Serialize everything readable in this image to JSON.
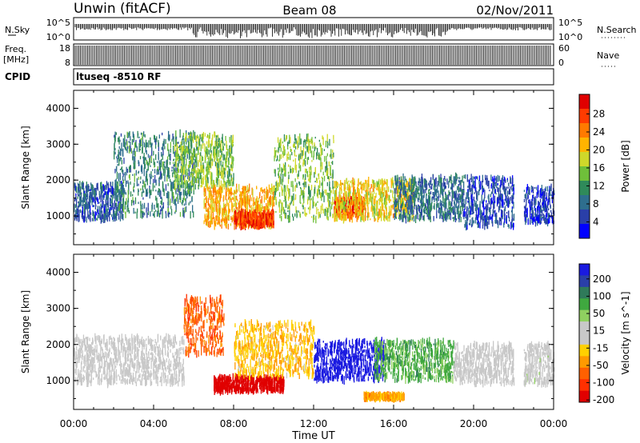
{
  "header": {
    "station": "Unwin (fitACF)",
    "beam": "Beam 08",
    "date": "02/Nov/2011"
  },
  "strip_labels": {
    "nsky": "N.Sky",
    "freq_line1": "Freq.",
    "freq_line2": "[MHz]",
    "cpid": "CPID",
    "nsearch": "N.Search",
    "nave": "Nave",
    "cpid_value": "ltuseq -8510 RF"
  },
  "strip_ticks": {
    "nsky_left": [
      "10^5",
      "10^0"
    ],
    "nsky_right": [
      "10^5",
      "10^0"
    ],
    "freq_left": [
      "18",
      "8"
    ],
    "nave_right": [
      "60",
      "0"
    ]
  },
  "chart_data": [
    {
      "type": "heatmap",
      "panel": "power",
      "ylabel": "Slant Range [km]",
      "xlabel": "Time UT",
      "xlim": [
        0,
        24
      ],
      "ylim": [
        200,
        4500
      ],
      "yticks": [
        "1000",
        "2000",
        "3000",
        "4000"
      ],
      "xticks": [
        "00:00",
        "04:00",
        "08:00",
        "12:00",
        "16:00",
        "20:00",
        "00:00"
      ],
      "colorbar": {
        "label": "Power [dB]",
        "ticks": [
          "4",
          "8",
          "12",
          "16",
          "20",
          "24",
          "28"
        ],
        "colors": [
          "#0000ff",
          "#2a3fa8",
          "#2e6e8e",
          "#2f8a5a",
          "#6fbf3a",
          "#cfd82a",
          "#ffb400",
          "#ff7a00",
          "#ff3b00",
          "#e00000"
        ]
      },
      "regions": [
        {
          "t0": 0.0,
          "t1": 2.5,
          "r0": 900,
          "r1": 1900,
          "value": 6
        },
        {
          "t0": 2.0,
          "t1": 6.0,
          "r0": 1000,
          "r1": 3300,
          "value": 9
        },
        {
          "t0": 5.0,
          "t1": 8.0,
          "r0": 1800,
          "r1": 3300,
          "value": 14
        },
        {
          "t0": 6.5,
          "t1": 10.0,
          "r0": 700,
          "r1": 1800,
          "value": 20
        },
        {
          "t0": 8.0,
          "t1": 10.0,
          "r0": 700,
          "r1": 1100,
          "value": 26
        },
        {
          "t0": 10.0,
          "t1": 13.0,
          "r0": 900,
          "r1": 3200,
          "value": 14
        },
        {
          "t0": 13.0,
          "t1": 14.5,
          "r0": 1000,
          "r1": 1500,
          "value": 27
        },
        {
          "t0": 13.0,
          "t1": 17.0,
          "r0": 900,
          "r1": 2000,
          "value": 18
        },
        {
          "t0": 16.0,
          "t1": 19.5,
          "r0": 900,
          "r1": 2100,
          "value": 8
        },
        {
          "t0": 19.5,
          "t1": 22.0,
          "r0": 700,
          "r1": 2100,
          "value": 5
        },
        {
          "t0": 22.5,
          "t1": 24.0,
          "r0": 800,
          "r1": 1800,
          "value": 4
        }
      ]
    },
    {
      "type": "heatmap",
      "panel": "velocity",
      "ylabel": "Slant Range [km]",
      "xlabel": "Time UT",
      "xlim": [
        0,
        24
      ],
      "ylim": [
        200,
        4500
      ],
      "yticks": [
        "1000",
        "2000",
        "3000",
        "4000"
      ],
      "xticks": [
        "00:00",
        "04:00",
        "08:00",
        "12:00",
        "16:00",
        "20:00",
        "00:00"
      ],
      "colorbar": {
        "label": "Velocity [m s^-1]",
        "ticks": [
          "200",
          "100",
          "50",
          "15",
          "-15",
          "-50",
          "-100",
          "-200"
        ],
        "colors": [
          "#1a1ae0",
          "#2a3fa8",
          "#2f7a5a",
          "#3fa83f",
          "#8fd060",
          "#c8c8c8",
          "#c8c8c8",
          "#ffd000",
          "#ff9a00",
          "#ff6000",
          "#ff3000",
          "#e00000"
        ]
      },
      "regions": [
        {
          "t0": 0.0,
          "t1": 5.5,
          "r0": 900,
          "r1": 2200,
          "value": 0
        },
        {
          "t0": 5.5,
          "t1": 7.5,
          "r0": 1700,
          "r1": 3300,
          "value": -120
        },
        {
          "t0": 7.0,
          "t1": 10.5,
          "r0": 700,
          "r1": 1100,
          "value": -200
        },
        {
          "t0": 8.0,
          "t1": 12.0,
          "r0": 1100,
          "r1": 2600,
          "value": -60
        },
        {
          "t0": 12.0,
          "t1": 15.5,
          "r0": 1000,
          "r1": 2100,
          "value": 200
        },
        {
          "t0": 15.0,
          "t1": 19.0,
          "r0": 1000,
          "r1": 2100,
          "value": 80
        },
        {
          "t0": 19.0,
          "t1": 22.0,
          "r0": 900,
          "r1": 2000,
          "value": 0
        },
        {
          "t0": 14.5,
          "t1": 16.5,
          "r0": 500,
          "r1": 600,
          "value": -80
        },
        {
          "t0": 22.5,
          "t1": 24.0,
          "r0": 900,
          "r1": 2000,
          "value": 5
        }
      ]
    }
  ]
}
